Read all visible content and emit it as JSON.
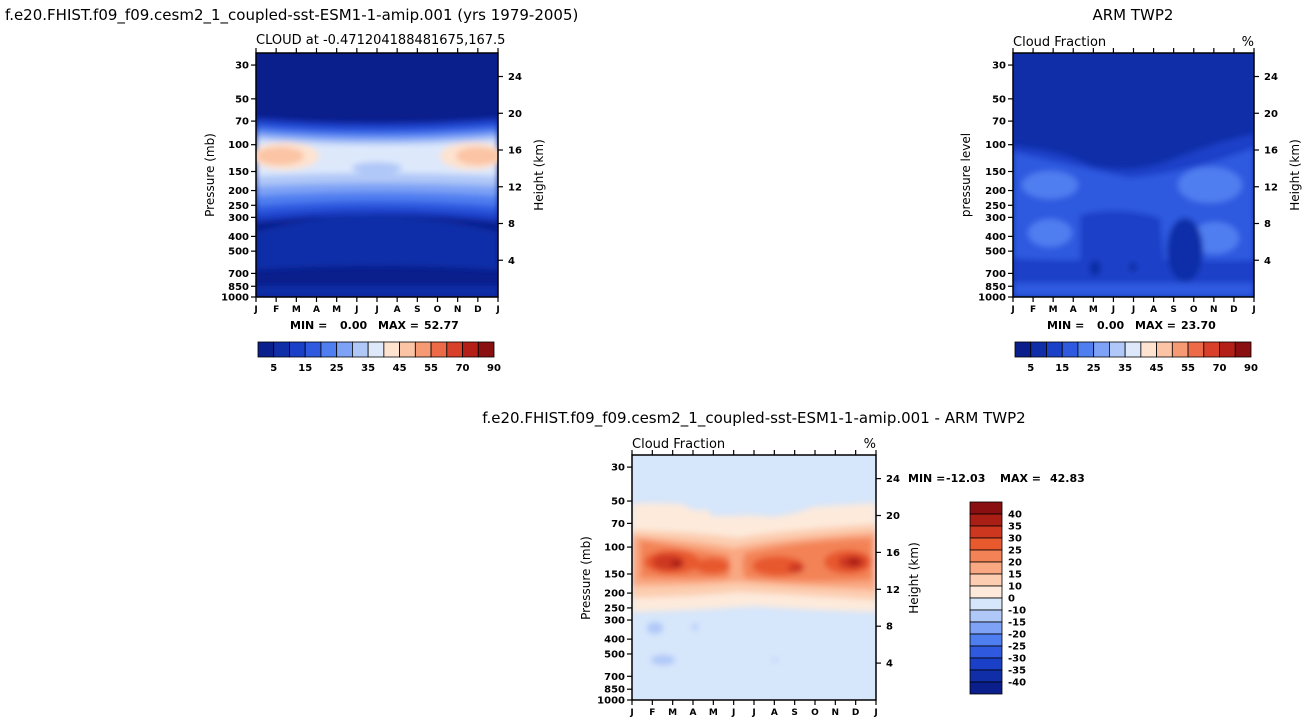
{
  "colors": {
    "seq": [
      "#0a1e8c",
      "#0f2ea8",
      "#1a40c8",
      "#2f5ae0",
      "#4f7ef0",
      "#7ea2f5",
      "#b0c8f8",
      "#dde8fb",
      "#fde3d0",
      "#fbc4a4",
      "#f59a72",
      "#ec6a48",
      "#d8402a",
      "#b42018",
      "#8a0f10"
    ],
    "div": [
      "#0a1e8c",
      "#0f2ea8",
      "#1a40c8",
      "#2f5ae0",
      "#4f7ef0",
      "#7ea2f5",
      "#b0c8f8",
      "#d6e6fb",
      "#fdeadb",
      "#fccdb0",
      "#f9a882",
      "#f38356",
      "#e8592e",
      "#cd3720",
      "#aa1f15",
      "#8a0f10"
    ]
  },
  "chart_data": [
    {
      "type": "heatmap",
      "title": "f.e20.FHIST.f09_f09.cesm2_1_coupled-sst-ESM1-1-amip.001 (yrs 1979-2005)",
      "subtitle": "CLOUD at -0.471204188481675,167.5",
      "ylabel": "Pressure (mb)",
      "ylabel_right": "Height (km)",
      "y_scale": "log",
      "y_reversed": true,
      "ylim": [
        1000,
        25
      ],
      "yticks": [
        30,
        50,
        70,
        100,
        150,
        200,
        250,
        300,
        400,
        500,
        700,
        850,
        1000
      ],
      "yticks_right": [
        24,
        20,
        16,
        12,
        8,
        4
      ],
      "months": [
        "J",
        "F",
        "M",
        "A",
        "M",
        "J",
        "J",
        "A",
        "S",
        "O",
        "N",
        "D",
        "J"
      ],
      "min_label": "MIN =",
      "min_value": "0.00",
      "max_label": "MAX =",
      "max_value": "52.77",
      "colorbar_labels": [
        "5",
        "15",
        "25",
        "35",
        "45",
        "55",
        "70",
        "90"
      ],
      "colorbar_levels": [
        5,
        10,
        15,
        20,
        25,
        30,
        35,
        40,
        45,
        50,
        55,
        60,
        70,
        80,
        90
      ]
    },
    {
      "type": "heatmap",
      "title": "ARM TWP2",
      "subtitle": "Cloud Fraction",
      "units": "%",
      "ylabel": "pressure level",
      "ylabel_right": "Height (km)",
      "y_scale": "log",
      "y_reversed": true,
      "ylim": [
        1000,
        25
      ],
      "yticks": [
        30,
        50,
        70,
        100,
        150,
        200,
        250,
        300,
        400,
        500,
        700,
        850,
        1000
      ],
      "yticks_right": [
        24,
        20,
        16,
        12,
        8,
        4
      ],
      "months": [
        "J",
        "F",
        "M",
        "A",
        "M",
        "J",
        "J",
        "A",
        "S",
        "O",
        "N",
        "D",
        "J"
      ],
      "min_label": "MIN =",
      "min_value": "0.00",
      "max_label": "MAX =",
      "max_value": "23.70",
      "colorbar_labels": [
        "5",
        "15",
        "25",
        "35",
        "45",
        "55",
        "70",
        "90"
      ],
      "colorbar_levels": [
        5,
        10,
        15,
        20,
        25,
        30,
        35,
        40,
        45,
        50,
        55,
        60,
        70,
        80,
        90
      ]
    },
    {
      "type": "heatmap",
      "title": "f.e20.FHIST.f09_f09.cesm2_1_coupled-sst-ESM1-1-amip.001 - ARM TWP2",
      "subtitle": "Cloud Fraction",
      "units": "%",
      "ylabel": "Pressure (mb)",
      "ylabel_right": "Height (km)",
      "y_scale": "log",
      "y_reversed": true,
      "ylim": [
        1000,
        25
      ],
      "yticks": [
        30,
        50,
        70,
        100,
        150,
        200,
        250,
        300,
        400,
        500,
        700,
        850,
        1000
      ],
      "yticks_right": [
        24,
        20,
        16,
        12,
        8,
        4
      ],
      "months": [
        "J",
        "F",
        "M",
        "A",
        "M",
        "J",
        "J",
        "A",
        "S",
        "O",
        "N",
        "D",
        "J"
      ],
      "min_label": "MIN =",
      "min_value": "-12.03",
      "max_label": "MAX =",
      "max_value": "42.83",
      "colorbar_labels": [
        "40",
        "35",
        "30",
        "25",
        "20",
        "15",
        "10",
        "0",
        "-10",
        "-15",
        "-20",
        "-25",
        "-30",
        "-35",
        "-40"
      ],
      "colorbar_levels": [
        -40,
        -35,
        -30,
        -25,
        -20,
        -15,
        -10,
        0,
        10,
        15,
        20,
        25,
        30,
        35,
        40
      ]
    }
  ]
}
